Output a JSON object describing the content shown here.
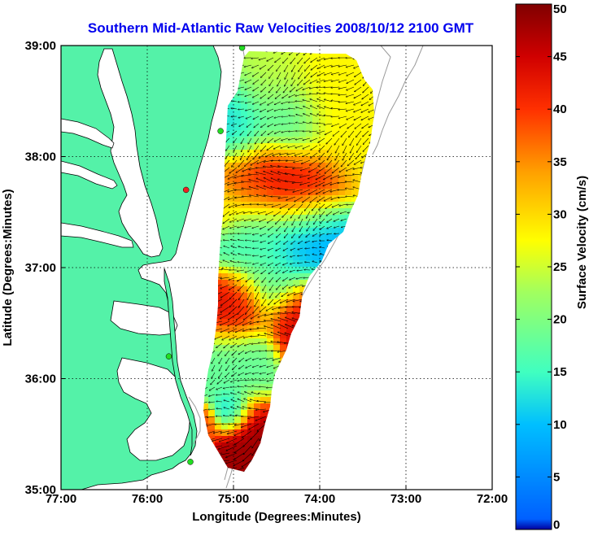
{
  "title": "Southern Mid-Atlantic Raw Velocities 2008/10/12 2100 GMT",
  "map": {
    "xlabel": "Longitude (Degrees:Minutes)",
    "ylabel": "Latitude (Degrees:Minutes)",
    "lon_range": [
      -77.0,
      -72.0
    ],
    "lat_range": [
      35.0,
      39.0
    ],
    "x_ticks": [
      {
        "value": -77.0,
        "label": "77:00"
      },
      {
        "value": -76.0,
        "label": "76:00"
      },
      {
        "value": -75.0,
        "label": "75:00"
      },
      {
        "value": -74.0,
        "label": "74:00"
      },
      {
        "value": -73.0,
        "label": "73:00"
      },
      {
        "value": -72.0,
        "label": "72:00"
      }
    ],
    "y_ticks": [
      {
        "value": 35.0,
        "label": "35:00"
      },
      {
        "value": 36.0,
        "label": "36:00"
      },
      {
        "value": 37.0,
        "label": "37:00"
      },
      {
        "value": 38.0,
        "label": "38:00"
      },
      {
        "value": 39.0,
        "label": "39:00"
      }
    ],
    "grid": "dotted",
    "land_color": "#54f2a8",
    "water_color": "#ffffff",
    "coast_color": "#000000",
    "isobath_color": "#999999"
  },
  "colorbar": {
    "label": "Surface Velocity (cm/s)",
    "range": [
      0,
      50
    ],
    "ticks": [
      {
        "value": 0,
        "label": "0"
      },
      {
        "value": 5,
        "label": "5"
      },
      {
        "value": 10,
        "label": "10"
      },
      {
        "value": 15,
        "label": "15"
      },
      {
        "value": 20,
        "label": "20"
      },
      {
        "value": 25,
        "label": "25"
      },
      {
        "value": 30,
        "label": "30"
      },
      {
        "value": 35,
        "label": "35"
      },
      {
        "value": 40,
        "label": "40"
      },
      {
        "value": 45,
        "label": "45"
      },
      {
        "value": 50,
        "label": "50"
      }
    ],
    "colormap": "jet",
    "levels": 50
  },
  "stations": [
    {
      "lon": -74.9,
      "lat": 38.98,
      "color": "#22dd22"
    },
    {
      "lon": -75.15,
      "lat": 38.23,
      "color": "#22dd22"
    },
    {
      "lon": -75.55,
      "lat": 37.7,
      "color": "#ee2222"
    },
    {
      "lon": -75.75,
      "lat": 36.2,
      "color": "#22dd22"
    },
    {
      "lon": -75.5,
      "lat": 35.25,
      "color": "#22dd22"
    }
  ],
  "chart_data": {
    "type": "heatmap",
    "title": "Southern Mid-Atlantic Raw Velocities 2008/10/12 2100 GMT",
    "xlabel": "Longitude (Degrees:Minutes)",
    "ylabel": "Latitude (Degrees:Minutes)",
    "xlim": [
      -77.0,
      -72.0
    ],
    "ylim": [
      35.0,
      39.0
    ],
    "value_label": "Surface Velocity (cm/s)",
    "value_range": [
      0,
      50
    ],
    "speed_features": [
      {
        "lon": -74.4,
        "lat": 37.75,
        "speed": 45,
        "radius_deg": 0.35
      },
      {
        "lon": -74.85,
        "lat": 37.72,
        "speed": 40,
        "radius_deg": 0.3
      },
      {
        "lon": -74.2,
        "lat": 36.55,
        "speed": 45,
        "radius_deg": 0.28
      },
      {
        "lon": -74.95,
        "lat": 36.65,
        "speed": 44,
        "radius_deg": 0.25
      },
      {
        "lon": -74.8,
        "lat": 35.5,
        "speed": 48,
        "radius_deg": 0.25
      },
      {
        "lon": -74.85,
        "lat": 35.25,
        "speed": 48,
        "radius_deg": 0.2
      },
      {
        "lon": -74.0,
        "lat": 38.5,
        "speed": 28,
        "radius_deg": 0.4
      },
      {
        "lon": -74.6,
        "lat": 38.7,
        "speed": 24,
        "radius_deg": 0.35
      },
      {
        "lon": -74.95,
        "lat": 38.3,
        "speed": 12,
        "radius_deg": 0.3
      },
      {
        "lon": -74.35,
        "lat": 38.3,
        "speed": 13,
        "radius_deg": 0.28
      },
      {
        "lon": -74.3,
        "lat": 37.2,
        "speed": 8,
        "radius_deg": 0.35
      },
      {
        "lon": -74.8,
        "lat": 37.3,
        "speed": 14,
        "radius_deg": 0.3
      },
      {
        "lon": -75.1,
        "lat": 37.55,
        "speed": 28,
        "radius_deg": 0.18
      },
      {
        "lon": -74.6,
        "lat": 36.95,
        "speed": 20,
        "radius_deg": 0.3
      },
      {
        "lon": -74.9,
        "lat": 36.1,
        "speed": 18,
        "radius_deg": 0.3
      },
      {
        "lon": -75.0,
        "lat": 35.7,
        "speed": 8,
        "radius_deg": 0.15
      },
      {
        "lon": -75.35,
        "lat": 35.55,
        "speed": 38,
        "radius_deg": 0.12
      }
    ],
    "flow_direction_note": "predominantly toward the southwest along the shelf",
    "vectors": "dense black arrows on every grid cell of the coverage area"
  }
}
